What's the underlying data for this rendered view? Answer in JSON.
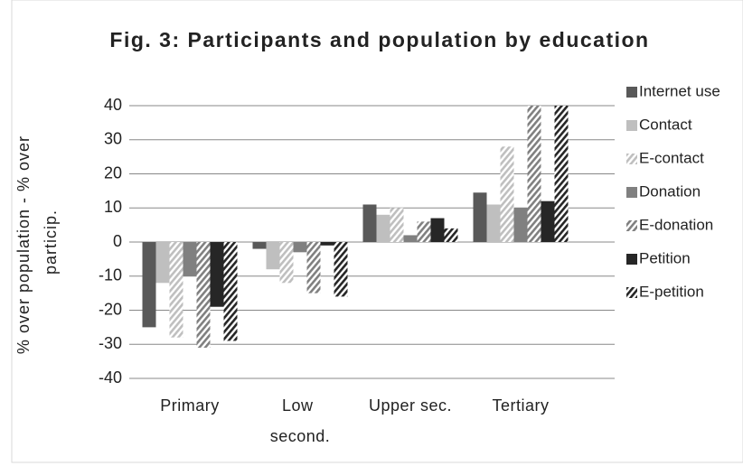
{
  "chart_data": {
    "type": "bar",
    "title": "Fig. 3: Participants and population by education",
    "y_label": "% over population - % over particip.",
    "categories": [
      "Primary",
      "Low second.",
      "Upper sec.",
      "Tertiary"
    ],
    "series": [
      {
        "name": "Internet use",
        "color": "#595959",
        "hatched": false,
        "values": [
          -25,
          -2,
          11,
          14.5
        ]
      },
      {
        "name": "Contact",
        "color": "#bfbfbf",
        "hatched": false,
        "values": [
          -12,
          -8,
          8,
          11
        ]
      },
      {
        "name": "E-contact",
        "color": "#bfbfbf",
        "hatched": true,
        "values": [
          -28,
          -12,
          10,
          28
        ]
      },
      {
        "name": "Donation",
        "color": "#808080",
        "hatched": false,
        "values": [
          -10,
          -3,
          2,
          10
        ]
      },
      {
        "name": "E-donation",
        "color": "#808080",
        "hatched": true,
        "values": [
          -31,
          -15,
          6,
          40
        ]
      },
      {
        "name": "Petition",
        "color": "#262626",
        "hatched": false,
        "values": [
          -19,
          -1,
          7,
          12
        ]
      },
      {
        "name": "E-petition",
        "color": "#262626",
        "hatched": true,
        "values": [
          -29,
          -16,
          4,
          40
        ]
      }
    ],
    "ylim": [
      -40,
      40
    ],
    "yticks": [
      -40,
      -30,
      -20,
      -10,
      0,
      10,
      20,
      30,
      40
    ],
    "grid": true,
    "legend": "right"
  }
}
